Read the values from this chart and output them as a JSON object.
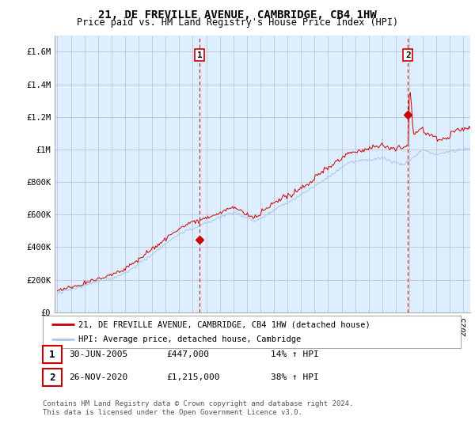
{
  "title": "21, DE FREVILLE AVENUE, CAMBRIDGE, CB4 1HW",
  "subtitle": "Price paid vs. HM Land Registry's House Price Index (HPI)",
  "ylabel_ticks": [
    "£0",
    "£200K",
    "£400K",
    "£600K",
    "£800K",
    "£1M",
    "£1.2M",
    "£1.4M",
    "£1.6M"
  ],
  "ytick_values": [
    0,
    200000,
    400000,
    600000,
    800000,
    1000000,
    1200000,
    1400000,
    1600000
  ],
  "ylim": [
    0,
    1700000
  ],
  "xlim_start": 1994.8,
  "xlim_end": 2025.5,
  "sale1_x": 2005.5,
  "sale1_y": 447000,
  "sale1_label": "1",
  "sale2_x": 2020.9,
  "sale2_y": 1215000,
  "sale2_label": "2",
  "hpi_color": "#a8c8e8",
  "price_color": "#cc0000",
  "vline_color": "#cc0000",
  "background_color": "#ffffff",
  "chart_bg_color": "#ddeeff",
  "grid_color": "#bbbbcc",
  "legend_entries": [
    "21, DE FREVILLE AVENUE, CAMBRIDGE, CB4 1HW (detached house)",
    "HPI: Average price, detached house, Cambridge"
  ],
  "table_rows": [
    [
      "1",
      "30-JUN-2005",
      "£447,000",
      "14% ↑ HPI"
    ],
    [
      "2",
      "26-NOV-2020",
      "£1,215,000",
      "38% ↑ HPI"
    ]
  ],
  "footer": "Contains HM Land Registry data © Crown copyright and database right 2024.\nThis data is licensed under the Open Government Licence v3.0.",
  "title_fontsize": 10,
  "subtitle_fontsize": 8.5,
  "tick_fontsize": 7.5,
  "legend_fontsize": 7.5,
  "table_fontsize": 8,
  "footer_fontsize": 6.5
}
